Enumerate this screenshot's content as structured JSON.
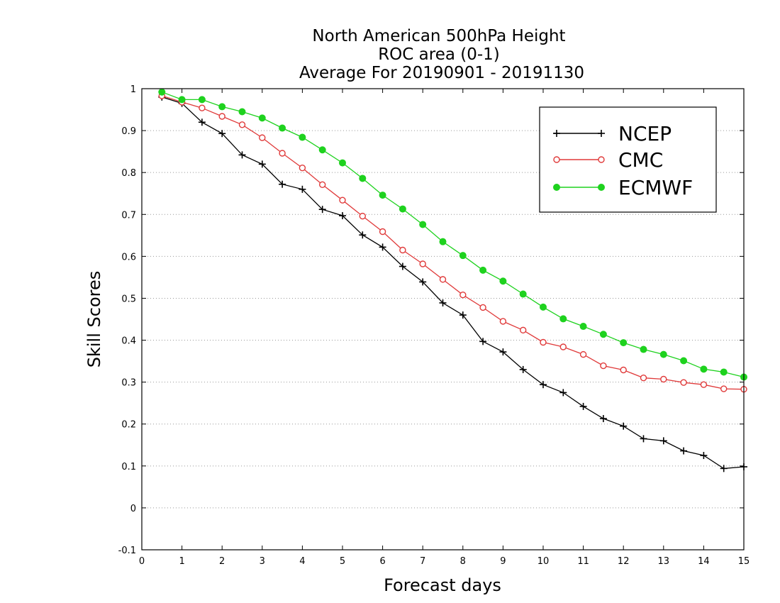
{
  "chart_data": {
    "type": "line",
    "title": [
      "North American 500hPa Height",
      "ROC area (0-1)",
      "Average For 20190901 - 20191130"
    ],
    "xlabel": "Forecast days",
    "ylabel": "Skill Scores",
    "xlim": [
      0,
      15
    ],
    "ylim": [
      -0.1,
      1
    ],
    "xticks": [
      "0",
      "1",
      "2",
      "3",
      "4",
      "5",
      "6",
      "7",
      "8",
      "9",
      "10",
      "11",
      "12",
      "13",
      "14",
      "15"
    ],
    "yticks": [
      "-0.1",
      "0",
      "0.1",
      "0.2",
      "0.3",
      "0.4",
      "0.5",
      "0.6",
      "0.7",
      "0.8",
      "0.9",
      "1"
    ],
    "grid": "horizontal dotted",
    "legend_position": "top-right",
    "x": [
      0.5,
      1,
      1.5,
      2,
      2.5,
      3,
      3.5,
      4,
      4.5,
      5,
      5.5,
      6,
      6.5,
      7,
      7.5,
      8,
      8.5,
      9,
      9.5,
      10,
      10.5,
      11,
      11.5,
      12,
      12.5,
      13,
      13.5,
      14,
      14.5,
      15
    ],
    "series": [
      {
        "name": "NCEP",
        "color": "#000000",
        "marker": "plus",
        "values": [
          0.98,
          0.965,
          0.92,
          0.893,
          0.842,
          0.82,
          0.772,
          0.76,
          0.712,
          0.697,
          0.651,
          0.622,
          0.576,
          0.539,
          0.489,
          0.46,
          0.397,
          0.372,
          0.33,
          0.294,
          0.275,
          0.242,
          0.213,
          0.195,
          0.165,
          0.16,
          0.136,
          0.125,
          0.094,
          0.098
        ]
      },
      {
        "name": "CMC",
        "color": "#e03a3a",
        "marker": "open-circle",
        "values": [
          0.983,
          0.968,
          0.954,
          0.934,
          0.914,
          0.883,
          0.846,
          0.811,
          0.771,
          0.734,
          0.696,
          0.659,
          0.615,
          0.582,
          0.545,
          0.508,
          0.478,
          0.445,
          0.424,
          0.395,
          0.384,
          0.366,
          0.339,
          0.329,
          0.31,
          0.307,
          0.299,
          0.294,
          0.284,
          0.283
        ]
      },
      {
        "name": "ECMWF",
        "color": "#1ed21e",
        "marker": "filled-circle",
        "values": [
          0.992,
          0.974,
          0.974,
          0.957,
          0.945,
          0.93,
          0.906,
          0.884,
          0.854,
          0.823,
          0.786,
          0.746,
          0.713,
          0.676,
          0.635,
          0.602,
          0.567,
          0.541,
          0.51,
          0.479,
          0.451,
          0.433,
          0.414,
          0.394,
          0.378,
          0.366,
          0.351,
          0.331,
          0.324,
          0.312
        ]
      }
    ]
  }
}
